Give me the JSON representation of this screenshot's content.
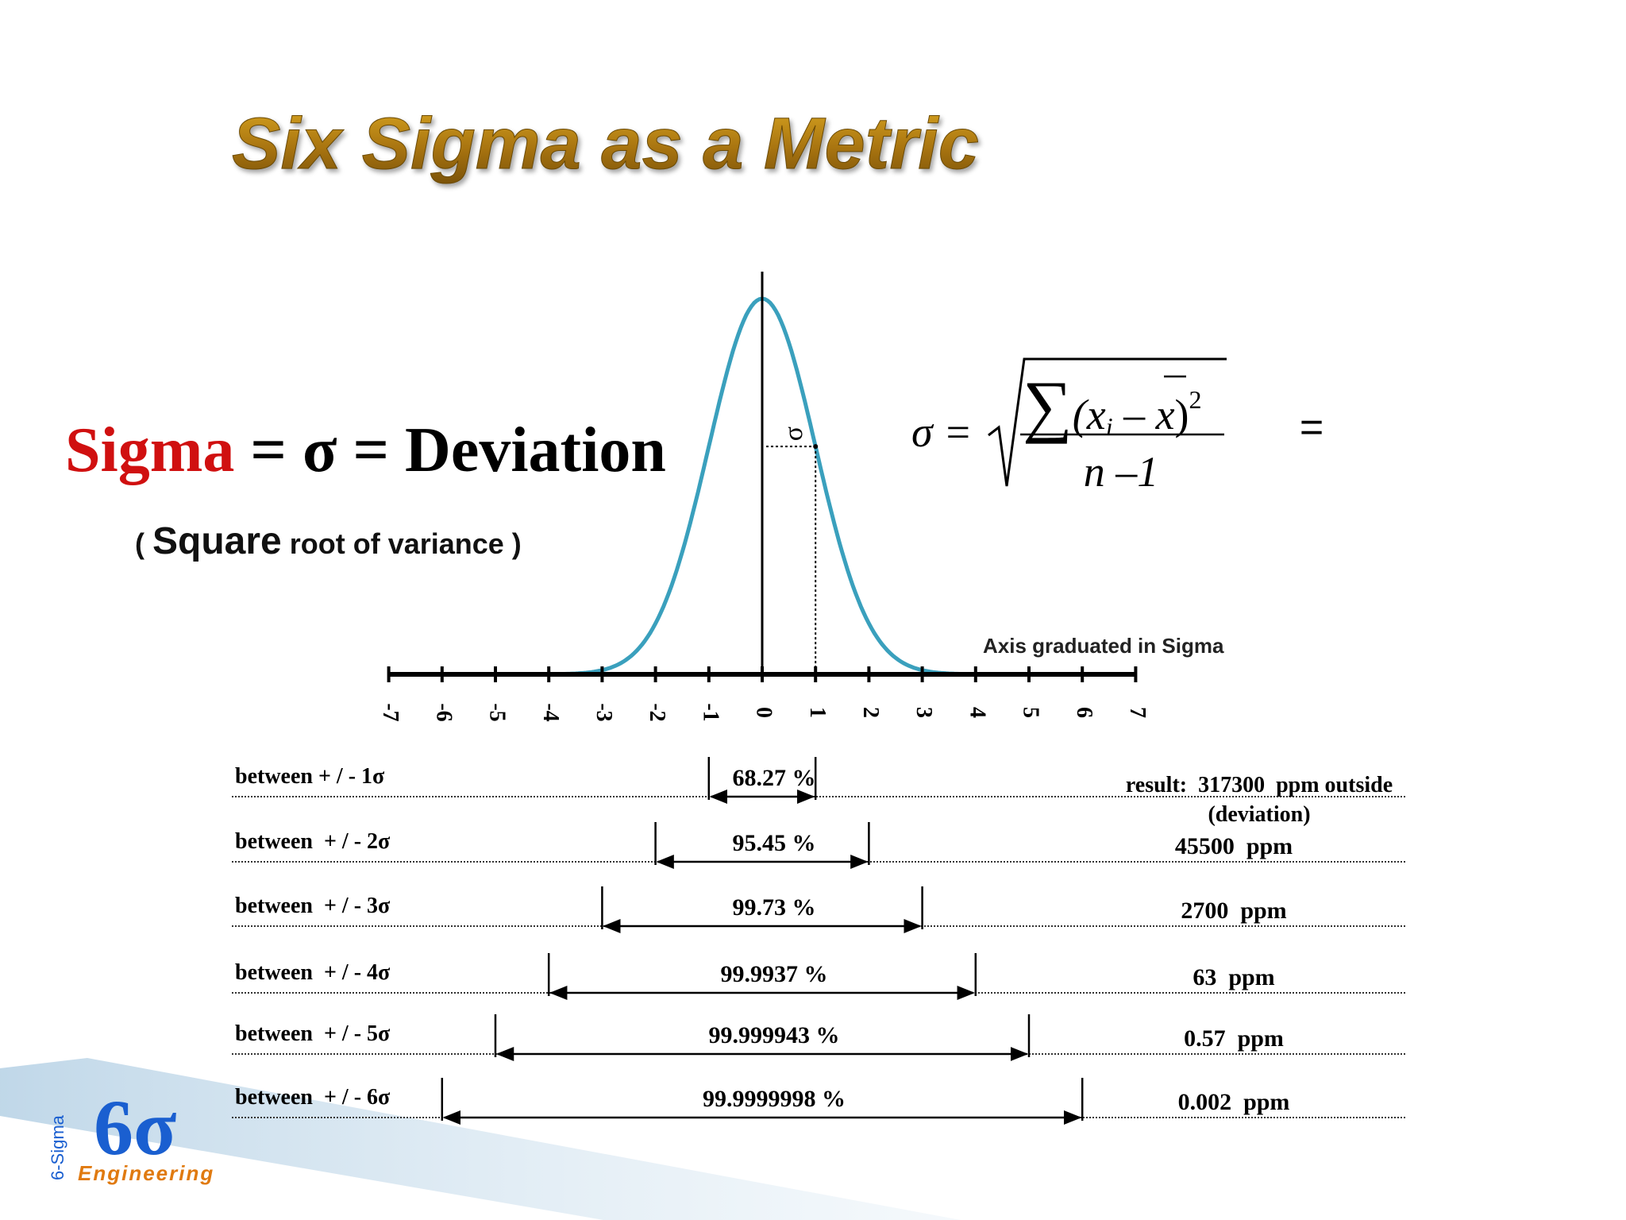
{
  "title": "Six Sigma as a Metric",
  "definition": {
    "term": "Sigma",
    "rest": " = σ = Deviation",
    "note": {
      "open": "( ",
      "emphasis": "Square",
      "rest": " root of variance )"
    }
  },
  "curve": {
    "sigma_label": "σ",
    "axis_caption": "Axis graduated in Sigma",
    "ticks": [
      -7,
      -6,
      -5,
      -4,
      -3,
      -2,
      -1,
      0,
      1,
      2,
      3,
      4,
      5,
      6,
      7
    ]
  },
  "formula": {
    "lhs": "σ =",
    "sum": "∑",
    "open": "(x",
    "sub": "i",
    "minus": " – ",
    "xbar": "x",
    "close": ")",
    "exp": "2",
    "denominator": "n –1",
    "trailing": "="
  },
  "rows": [
    {
      "label": "between + / - 1σ",
      "percent": "68.27 %",
      "ppm": "result:  317300  ppm outside",
      "note": "(deviation)"
    },
    {
      "label": "between  + / - 2σ",
      "percent": "95.45 %",
      "ppm": "45500  ppm"
    },
    {
      "label": "between  + / - 3σ",
      "percent": "99.73 %",
      "ppm": "2700  ppm"
    },
    {
      "label": "between  + / - 4σ",
      "percent": "99.9937 %",
      "ppm": "63  ppm"
    },
    {
      "label": "between  + / - 5σ",
      "percent": "99.999943 %",
      "ppm": "0.57  ppm"
    },
    {
      "label": "between  + / - 6σ",
      "percent": "99.9999998 %",
      "ppm": "0.002  ppm"
    }
  ],
  "logo": {
    "mark": "6σ",
    "name": "Engineering",
    "vertical": "6-Sigma"
  }
}
